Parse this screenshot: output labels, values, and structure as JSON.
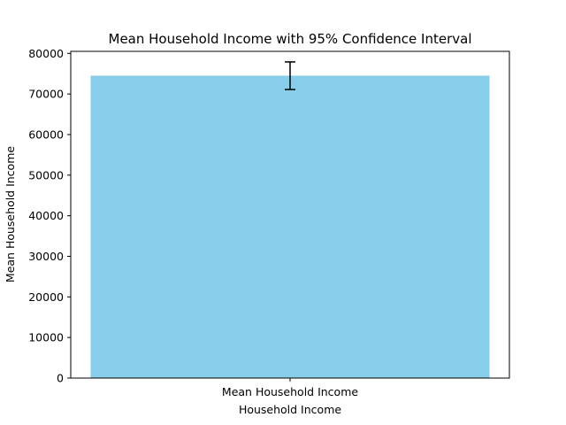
{
  "chart_data": {
    "type": "bar",
    "title": "Mean Household Income with 95% Confidence Interval",
    "xlabel": "Household Income",
    "ylabel": "Mean Household Income",
    "categories": [
      "Mean Household Income"
    ],
    "values": [
      74500
    ],
    "error_bars": [
      {
        "lower": 71100,
        "upper": 77900
      }
    ],
    "ylim": [
      0,
      80500
    ],
    "yticks": [
      0,
      10000,
      20000,
      30000,
      40000,
      50000,
      60000,
      70000,
      80000
    ],
    "grid": false,
    "bar_color": "#87ceeb",
    "errorbar_color": "#000000"
  }
}
